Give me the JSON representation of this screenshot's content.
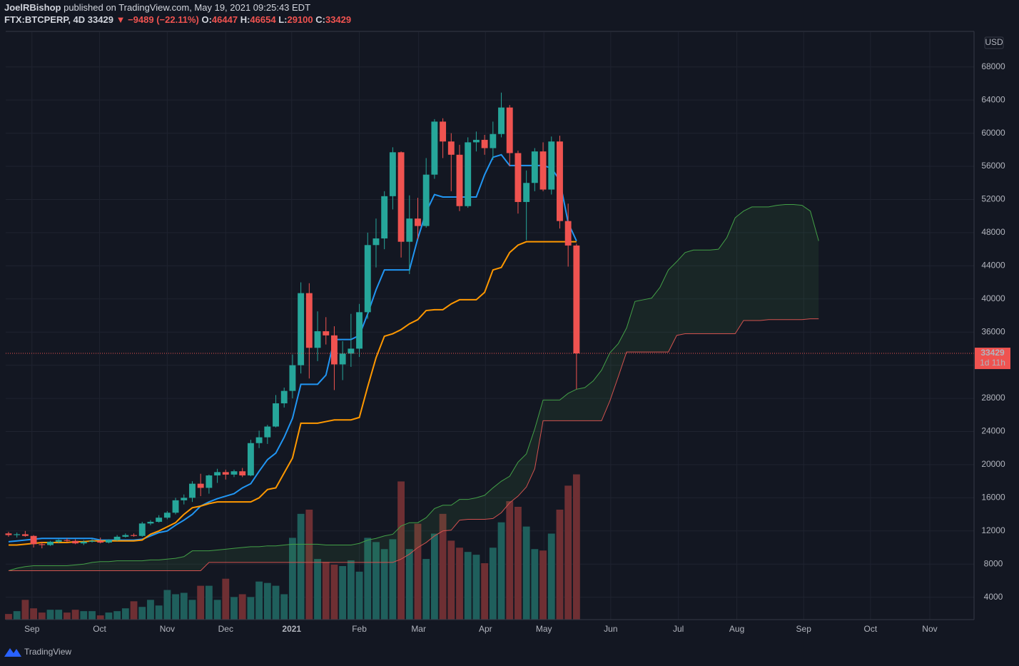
{
  "header": {
    "author": "JoelRBishop",
    "published": "published on TradingView.com, May 19, 2021 09:25:43 EDT",
    "symbol": "FTX:BTCPERP, 4D",
    "arrow": "▼",
    "change": "−9489 (−22.11%)",
    "open_label": "O:",
    "high_label": "H:",
    "low_label": "L:",
    "close_label": "C:"
  },
  "countdown": "1d 11h",
  "currency": "USD",
  "footer": "TradingView",
  "chart_data": {
    "type": "candlestick",
    "up_color": "#26a69a",
    "down_color": "#ef5350",
    "volume_up_color": "#1f5f5c",
    "volume_down_color": "#6e2f33",
    "xlim": [
      -0.34,
      115.6
    ],
    "xticks": [
      {
        "value": 2.8,
        "label": "Sep"
      },
      {
        "value": 10.9,
        "label": "Oct"
      },
      {
        "value": 19.0,
        "label": "Nov"
      },
      {
        "value": 26.0,
        "label": "Dec"
      },
      {
        "value": 33.9,
        "label": "2021"
      },
      {
        "value": 42.0,
        "label": "Feb"
      },
      {
        "value": 49.1,
        "label": "Mar"
      },
      {
        "value": 57.1,
        "label": "Apr"
      },
      {
        "value": 64.1,
        "label": "May"
      },
      {
        "value": 72.1,
        "label": "Jun"
      },
      {
        "value": 80.2,
        "label": "Jul"
      },
      {
        "value": 87.2,
        "label": "Aug"
      },
      {
        "value": 95.2,
        "label": "Sep"
      },
      {
        "value": 103.2,
        "label": "Oct"
      },
      {
        "value": 110.3,
        "label": "Nov"
      }
    ],
    "ylim": [
      1300,
      72200
    ],
    "yticks": [
      4000,
      8000,
      12000,
      16000,
      20000,
      24000,
      28000,
      32000,
      36000,
      40000,
      44000,
      48000,
      52000,
      56000,
      60000,
      64000,
      68000
    ],
    "grid": true,
    "open": [
      11700,
      11500,
      11600,
      11400,
      10400,
      10300,
      10700,
      10900,
      10800,
      10500,
      10700,
      10800,
      10600,
      10900,
      11300,
      11500,
      11400,
      12900,
      13100,
      13600,
      14200,
      15700,
      16000,
      17700,
      17200,
      18700,
      19100,
      18800,
      19200,
      18700,
      22600,
      23300,
      24600,
      27400,
      28900,
      32000,
      40700,
      34100,
      36100,
      35600,
      32100,
      33400,
      34000,
      38400,
      46500,
      47300,
      52400,
      57700,
      46900,
      49700,
      48800,
      55000,
      61400,
      59000,
      57400,
      51200,
      58900,
      59200,
      58200,
      59900,
      63100,
      57600,
      51700,
      54000,
      57800,
      53200,
      59000,
      49400,
      46447
    ],
    "high": [
      11900,
      11800,
      12000,
      11500,
      10700,
      10800,
      11000,
      11100,
      11000,
      10900,
      11000,
      11200,
      11000,
      11500,
      11700,
      11700,
      13100,
      13300,
      13900,
      14400,
      16000,
      16400,
      18000,
      18900,
      18800,
      19500,
      19400,
      19400,
      19600,
      23000,
      24100,
      24800,
      28400,
      29300,
      33300,
      42000,
      41900,
      38500,
      37800,
      36700,
      34900,
      38200,
      39400,
      48000,
      49700,
      53000,
      58300,
      57800,
      52500,
      52200,
      57000,
      61700,
      61800,
      60000,
      58600,
      59500,
      60200,
      59800,
      61400,
      64900,
      63400,
      57900,
      55500,
      58200,
      58900,
      59600,
      59700,
      51500,
      46654
    ],
    "low": [
      11300,
      11200,
      11300,
      10000,
      9900,
      10200,
      10500,
      10600,
      10400,
      10300,
      10600,
      10500,
      10500,
      10800,
      11200,
      11300,
      11300,
      12700,
      13000,
      13400,
      14000,
      15200,
      15500,
      16200,
      16500,
      17800,
      18200,
      18500,
      18500,
      18600,
      22000,
      22500,
      24500,
      26900,
      28000,
      31000,
      30400,
      32500,
      34500,
      29000,
      30200,
      31800,
      33000,
      37600,
      43800,
      46000,
      50800,
      45000,
      43000,
      47200,
      48600,
      54500,
      57000,
      53000,
      50600,
      51000,
      57800,
      57400,
      56800,
      59500,
      56000,
      50300,
      47100,
      53000,
      53000,
      52600,
      48500,
      43900,
      29100
    ],
    "close": [
      11500,
      11600,
      11400,
      10400,
      10300,
      10700,
      10900,
      10800,
      10500,
      10700,
      10800,
      10600,
      10900,
      11300,
      11500,
      11400,
      12900,
      13100,
      13600,
      14200,
      15700,
      16000,
      17700,
      17200,
      18700,
      19100,
      18800,
      19200,
      18700,
      22600,
      23300,
      24600,
      27400,
      28900,
      32000,
      40700,
      34100,
      36100,
      35600,
      32100,
      33400,
      34000,
      38400,
      46500,
      47300,
      52400,
      57700,
      46900,
      49700,
      48800,
      55000,
      61400,
      59000,
      57400,
      51200,
      58900,
      59200,
      58200,
      59900,
      63100,
      57600,
      51700,
      54000,
      57800,
      53200,
      59000,
      49400,
      46447,
      33429
    ],
    "volume": [
      8,
      12,
      28,
      16,
      10,
      14,
      14,
      10,
      14,
      12,
      12,
      6,
      10,
      12,
      16,
      26,
      18,
      28,
      20,
      42,
      36,
      38,
      28,
      48,
      48,
      28,
      58,
      32,
      36,
      32,
      54,
      52,
      48,
      36,
      116,
      150,
      156,
      86,
      82,
      78,
      76,
      84,
      68,
      116,
      110,
      100,
      114,
      196,
      100,
      136,
      86,
      122,
      150,
      112,
      102,
      96,
      92,
      80,
      102,
      138,
      168,
      160,
      132,
      100,
      98,
      122,
      156,
      190,
      206
    ],
    "volume_lim": [
      0,
      250
    ],
    "lines": [
      {
        "color": "#2196f3",
        "values": [
          10700,
          10800,
          10900,
          11000,
          11100,
          11100,
          11100,
          11100,
          11100,
          11100,
          11100,
          10900,
          10900,
          10900,
          10900,
          10900,
          11000,
          11400,
          11800,
          12000,
          12700,
          13300,
          14000,
          15000,
          15500,
          15900,
          16200,
          16500,
          17200,
          17700,
          19200,
          20600,
          21400,
          23300,
          25600,
          29700,
          29700,
          29700,
          30800,
          35100,
          35100,
          35100,
          35600,
          38200,
          41100,
          43500,
          43500,
          43500,
          43500,
          47300,
          50500,
          52600,
          52300,
          52300,
          52300,
          52300,
          52300,
          55000,
          57100,
          57400,
          56100,
          56100,
          56100,
          56100,
          56100,
          55800,
          54300,
          49200,
          47000
        ]
      },
      {
        "color": "#ff9800",
        "values": [
          10300,
          10300,
          10400,
          10500,
          10600,
          10600,
          10600,
          10600,
          10700,
          10700,
          10800,
          10800,
          10800,
          10800,
          10800,
          10800,
          10900,
          11600,
          12000,
          12500,
          13000,
          14000,
          14800,
          15000,
          15300,
          15500,
          15500,
          15500,
          15500,
          15500,
          16000,
          17000,
          17200,
          19000,
          20800,
          25000,
          25000,
          25000,
          25200,
          25400,
          25400,
          25400,
          25700,
          29400,
          32900,
          35500,
          35800,
          36300,
          37000,
          37500,
          38600,
          38700,
          38700,
          39400,
          39900,
          39900,
          39900,
          40800,
          43500,
          43800,
          45600,
          46500,
          46900,
          46900,
          46900,
          46900,
          46900,
          46900,
          46900
        ]
      }
    ],
    "cloud_fill": "rgba(76,175,80,0.10)",
    "spans": [
      {
        "color": "#43a047",
        "values": [
          7200,
          7500,
          7700,
          7800,
          7800,
          7800,
          7800,
          7800,
          7900,
          8000,
          8200,
          8300,
          8300,
          8400,
          8400,
          8400,
          8400,
          8500,
          8500,
          8600,
          8700,
          8900,
          9600,
          9600,
          9600,
          9700,
          9800,
          9900,
          10000,
          10100,
          10100,
          10200,
          10200,
          10300,
          10400,
          10400,
          10400,
          10400,
          10300,
          10300,
          10300,
          10300,
          10500,
          10900,
          11100,
          11400,
          11600,
          12600,
          13000,
          13000,
          13600,
          14700,
          15100,
          15100,
          15800,
          15800,
          16000,
          16300,
          17200,
          18000,
          18600,
          20300,
          21300,
          24300,
          27800,
          27800,
          27800,
          28600,
          29100,
          29300,
          30100,
          31400,
          33500,
          34600,
          36500,
          39700,
          39900,
          40100,
          41400,
          43500,
          44500,
          45600,
          45900,
          45900,
          45900,
          46000,
          47400,
          49800,
          50600,
          51100,
          51100,
          51100,
          51300,
          51400,
          51400,
          51300,
          50600,
          47000
        ]
      },
      {
        "color": "#d2524f",
        "values": [
          7200,
          7200,
          7200,
          7200,
          7200,
          7200,
          7200,
          7200,
          7200,
          7200,
          7200,
          7200,
          7200,
          7200,
          7200,
          7200,
          7200,
          7200,
          7200,
          7200,
          7200,
          7200,
          7200,
          7200,
          8200,
          8200,
          8200,
          8200,
          8200,
          8200,
          8200,
          8200,
          8200,
          8200,
          8200,
          8200,
          8200,
          8200,
          8200,
          8200,
          8200,
          8200,
          8200,
          8200,
          8200,
          8200,
          8200,
          8600,
          9200,
          10000,
          10600,
          11400,
          12000,
          12100,
          13300,
          13400,
          13400,
          13400,
          13500,
          14200,
          15400,
          16200,
          17300,
          19500,
          25300,
          25300,
          25300,
          25300,
          25300,
          25300,
          25300,
          25300,
          27700,
          30600,
          33600,
          33600,
          33600,
          33600,
          33600,
          33600,
          35600,
          35800,
          35800,
          35800,
          35800,
          35800,
          35800,
          35800,
          37400,
          37400,
          37400,
          37500,
          37500,
          37500,
          37500,
          37500,
          37600,
          37600
        ]
      }
    ]
  }
}
